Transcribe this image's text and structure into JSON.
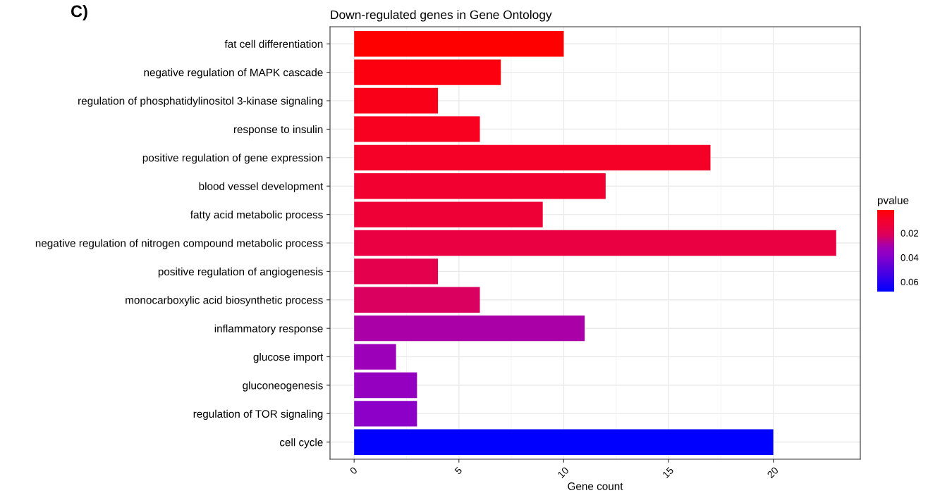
{
  "chart_data": {
    "type": "bar",
    "orientation": "horizontal",
    "title": "Down-regulated genes in Gene Ontology",
    "xlabel": "Gene count",
    "clabel": "pvalue",
    "annotations": [
      "C)"
    ],
    "categories": [
      "fat cell differentiation",
      "negative regulation of MAPK cascade",
      "regulation of phosphatidylinositol 3-kinase signaling",
      "response to insulin",
      "positive regulation of gene expression",
      "blood vessel development",
      "fatty acid metabolic process",
      "negative regulation of nitrogen compound metabolic process",
      "positive regulation of angiogenesis",
      "monocarboxylic acid biosynthetic process",
      "inflammatory response",
      "glucose import",
      "gluconeogenesis",
      "regulation of TOR signaling",
      "cell cycle"
    ],
    "values": [
      10,
      7,
      4,
      6,
      17,
      12,
      9,
      23,
      4,
      6,
      11,
      2,
      3,
      3,
      20
    ],
    "cvalues": [
      0.001,
      0.003,
      0.005,
      0.006,
      0.008,
      0.01,
      0.013,
      0.015,
      0.018,
      0.022,
      0.03,
      0.033,
      0.035,
      0.038,
      0.068
    ],
    "colors": [
      "#ff0000",
      "#fc0010",
      "#fa0018",
      "#f8001f",
      "#f50028",
      "#f2002f",
      "#ee0038",
      "#ea0042",
      "#e4004e",
      "#d9005f",
      "#a800a8",
      "#9c00b8",
      "#9500c0",
      "#8d00c8",
      "#0000ff"
    ],
    "clim": [
      0.001,
      0.068
    ],
    "cticks": [
      0.02,
      0.04,
      0.06
    ],
    "xlim": [
      -1.15,
      24.15
    ],
    "xticks": [
      0,
      5,
      10,
      15,
      20
    ],
    "grid": true
  }
}
